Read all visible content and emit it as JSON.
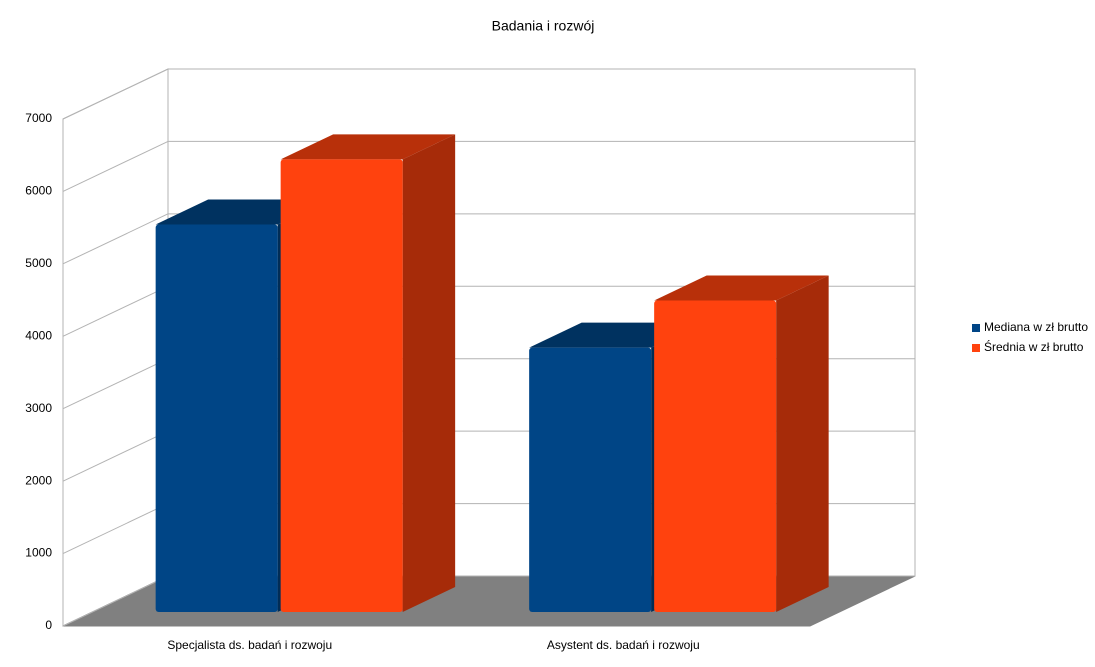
{
  "chart_data": {
    "type": "bar3d",
    "title": "Badania i rozwój",
    "categories": [
      "Specjalista ds. badań i rozwoju",
      "Asystent ds. badań i rozwoju"
    ],
    "series": [
      {
        "name": "Mediana w zł brutto",
        "color": "#004586",
        "values": [
          5350,
          3650
        ]
      },
      {
        "name": "Średnia w zł brutto",
        "color": "#ff420e",
        "values": [
          6250,
          4300
        ]
      }
    ],
    "ylim": [
      0,
      7000
    ],
    "yticks": [
      0,
      1000,
      2000,
      3000,
      4000,
      5000,
      6000,
      7000
    ],
    "grid": true,
    "legend": "right"
  }
}
